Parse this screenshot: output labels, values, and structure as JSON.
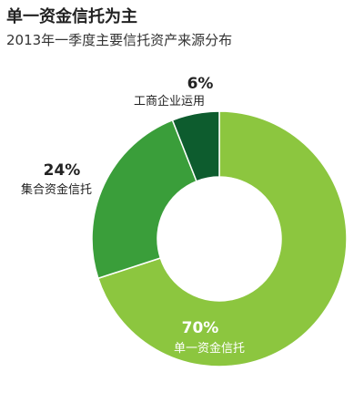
{
  "header": {
    "title": "单一资金信托为主",
    "subtitle": "2013年一季度主要信托资产来源分布"
  },
  "chart_data": {
    "type": "pie",
    "donut": true,
    "title": "单一资金信托为主",
    "subtitle": "2013年一季度主要信托资产来源分布",
    "slices": [
      {
        "label": "单一资金信托",
        "value": 70,
        "value_label": "70%",
        "color": "#8cc63f"
      },
      {
        "label": "集合资金信托",
        "value": 24,
        "value_label": "24%",
        "color": "#3a9e3a"
      },
      {
        "label": "工商企业运用",
        "value": 6,
        "value_label": "6%",
        "color": "#0d5c2e"
      }
    ],
    "legend": "none"
  }
}
